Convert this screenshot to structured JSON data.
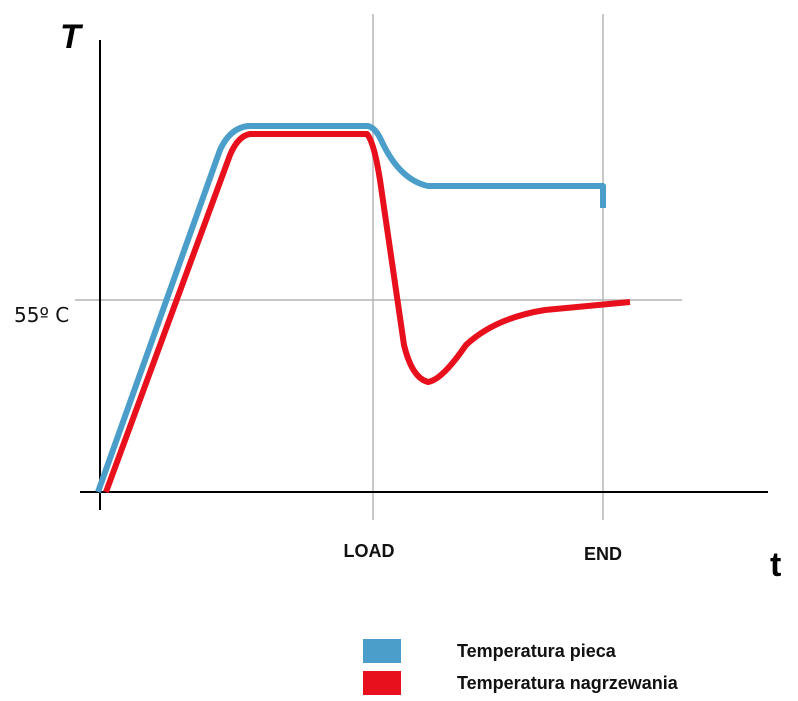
{
  "diagram": {
    "y_axis_label": "T",
    "x_axis_label": "t",
    "reference_label": "55º C",
    "markers": [
      {
        "id": "load",
        "label": "LOAD"
      },
      {
        "id": "end",
        "label": "END"
      }
    ]
  },
  "legend": {
    "items": [
      {
        "id": "furnace",
        "label": "Temperatura pieca",
        "color": "#4a9ec9"
      },
      {
        "id": "heating",
        "label": "Temperatura nagrzewania",
        "color": "#e8101c"
      }
    ]
  },
  "colors": {
    "furnace_curve": "#4a9ec9",
    "heating_curve": "#e8101c",
    "axis": "#000000",
    "guide_lines": "#c8c8c8"
  }
}
